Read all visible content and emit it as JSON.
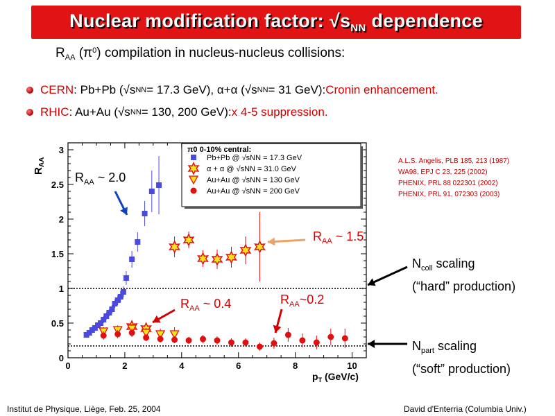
{
  "title": {
    "pre": "Nuclear modification factor:  √s",
    "sub": "NN",
    "post": " dependence"
  },
  "subtitle": {
    "r": "R",
    "r_sub": "AA",
    "open": " (π",
    "sup": "0",
    "rest": ") compilation in nucleus-nucleus collisions:"
  },
  "bullets": [
    {
      "lead": "CERN",
      "a": ": Pb+Pb (√s",
      "a_sub": "NN",
      "b": " = 17.3 GeV), α+α (√s",
      "b_sub": "NN",
      "c": "= 31 GeV): ",
      "highlight": "Cronin enhancement."
    },
    {
      "lead": "RHIC",
      "a": ": Au+Au (√s",
      "a_sub": "NN",
      "b": " = 130, 200 GeV): ",
      "highlight": "x 4-5 suppression."
    }
  ],
  "references": [
    "A.L.S. Angelis, PLB 185, 213 (1987)",
    "WA98, EPJ C 23, 225 (2002)",
    "PHENIX, PRL 88 022301 (2002)",
    "PHENIX, PRL 91, 072303  (2003)"
  ],
  "annotations": {
    "raa_20": {
      "r": "R",
      "sub": "AA",
      "text": " ~  2.0"
    },
    "raa_15": {
      "r": "R",
      "sub": "AA",
      "text": " ~ 1.5"
    },
    "raa_04": {
      "r": "R",
      "sub": "AA",
      "text": " ~  0.4"
    },
    "raa_02": {
      "r": "R",
      "sub": "AA",
      "text": "~0.2"
    },
    "ncoll": {
      "n": "N",
      "sub": "coll",
      "rest": " scaling",
      "line2": "(“hard” production)"
    },
    "npart": {
      "n": "N",
      "sub": "part",
      "rest": " scaling",
      "line2": "(“soft” production)"
    }
  },
  "footer": {
    "left": "Institut de Physique, Liège, Feb. 25, 2004",
    "right": "David d'Enterria (Columbia Univ.)"
  },
  "colors": {
    "title_bg": "#e01414",
    "cern": "#4a4adf",
    "alpha": "#f5e21a",
    "au130": "#f5e21a",
    "au200": "#e01010",
    "annotation_red": "#d40000"
  },
  "chart_data": {
    "type": "scatter",
    "xlabel": "p_T (GeV/c)",
    "ylabel": "R_AA",
    "xlim": [
      0,
      10.5
    ],
    "ylim": [
      0,
      3.1
    ],
    "xticks": [
      "0",
      "2",
      "4",
      "6",
      "8",
      "10"
    ],
    "yticks": [
      "0",
      "0.5",
      "1",
      "1.5",
      "2",
      "2.5",
      "3"
    ],
    "legend_title": "π0 0-10% central:",
    "legend_position": "top-right",
    "reference_lines": [
      {
        "name": "Ncoll scaling",
        "y": 1.0
      },
      {
        "name": "Npart scaling",
        "y": 0.17
      }
    ],
    "series": [
      {
        "name": "Pb+Pb @ √sNN = 17.3 GeV",
        "marker": "square",
        "color": "#4a4adf",
        "x": [
          0.65,
          0.75,
          0.85,
          0.95,
          1.05,
          1.15,
          1.25,
          1.35,
          1.45,
          1.55,
          1.65,
          1.75,
          1.85,
          1.95,
          2.05,
          2.25,
          2.45,
          2.7,
          2.95,
          3.2
        ],
        "y": [
          0.33,
          0.36,
          0.4,
          0.43,
          0.47,
          0.5,
          0.55,
          0.6,
          0.65,
          0.7,
          0.78,
          0.83,
          0.88,
          0.95,
          1.15,
          1.42,
          1.67,
          2.08,
          2.4,
          2.49
        ],
        "err": [
          0.03,
          0.03,
          0.03,
          0.03,
          0.04,
          0.04,
          0.05,
          0.05,
          0.05,
          0.06,
          0.06,
          0.07,
          0.08,
          0.08,
          0.1,
          0.12,
          0.14,
          0.18,
          0.3,
          0.42
        ]
      },
      {
        "name": "α + α  @ √sNN = 31.0 GeV",
        "marker": "star",
        "color": "#f5e21a",
        "x": [
          2.25,
          2.75,
          3.75,
          4.25,
          4.75,
          5.25,
          5.75,
          6.25,
          6.75
        ],
        "y": [
          0.45,
          0.42,
          1.6,
          1.7,
          1.43,
          1.42,
          1.45,
          1.55,
          1.6
        ],
        "err": [
          0.05,
          0.05,
          0.15,
          0.12,
          0.12,
          0.14,
          0.15,
          0.2,
          0.5
        ]
      },
      {
        "name": "Au+Au @ √sNN = 130 GeV",
        "marker": "triangle-down",
        "color": "#f5e21a",
        "x": [
          1.25,
          1.75,
          2.25,
          2.75,
          3.25,
          3.75
        ],
        "y": [
          0.38,
          0.4,
          0.42,
          0.36,
          0.34,
          0.34
        ],
        "err": [
          0.06,
          0.07,
          0.07,
          0.07,
          0.08,
          0.1
        ]
      },
      {
        "name": "Au+Au @ √sNN = 200 GeV",
        "marker": "circle",
        "color": "#e01010",
        "x": [
          1.25,
          1.75,
          2.25,
          2.75,
          3.25,
          3.75,
          4.25,
          4.75,
          5.25,
          5.75,
          6.25,
          6.75,
          7.25,
          7.75,
          8.25,
          8.75,
          9.25,
          9.75
        ],
        "y": [
          0.32,
          0.34,
          0.36,
          0.29,
          0.27,
          0.26,
          0.25,
          0.27,
          0.25,
          0.22,
          0.22,
          0.16,
          0.21,
          0.33,
          0.25,
          0.22,
          0.3,
          0.28
        ],
        "err": [
          0.06,
          0.06,
          0.06,
          0.05,
          0.05,
          0.05,
          0.05,
          0.06,
          0.06,
          0.06,
          0.06,
          0.06,
          0.08,
          0.1,
          0.1,
          0.1,
          0.12,
          0.14
        ]
      }
    ]
  }
}
